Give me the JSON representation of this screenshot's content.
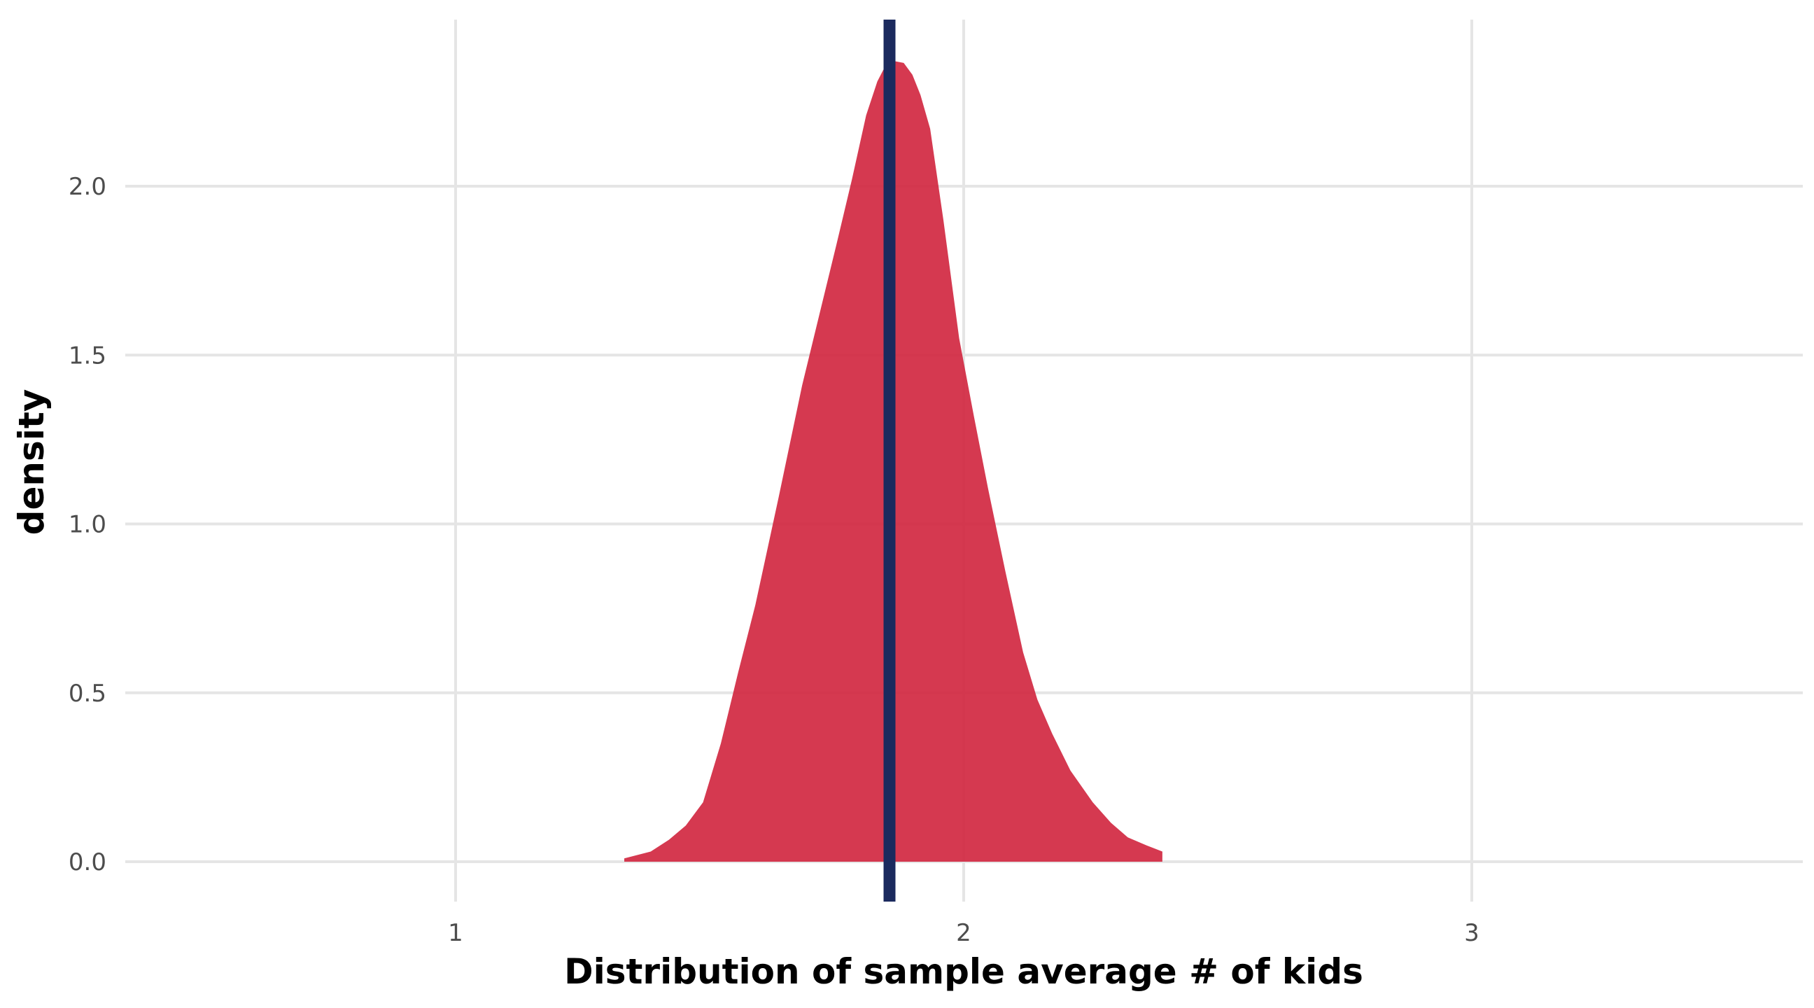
{
  "chart_data": {
    "type": "area",
    "title": "",
    "xlabel": "Distribution of sample average # of kids",
    "ylabel": "density",
    "xlim": [
      0.35,
      3.65
    ],
    "ylim": [
      -0.12,
      2.5
    ],
    "grid": true,
    "x_ticks": [
      {
        "value": 1,
        "label": "1"
      },
      {
        "value": 2,
        "label": "2"
      },
      {
        "value": 3,
        "label": "3"
      }
    ],
    "y_ticks": [
      {
        "value": 0,
        "label": "0.0"
      },
      {
        "value": 0.5,
        "label": "0.5"
      },
      {
        "value": 1,
        "label": "1.0"
      },
      {
        "value": 1.5,
        "label": "1.5"
      },
      {
        "value": 2,
        "label": "2.0"
      }
    ],
    "series": [
      {
        "name": "density",
        "color": "#d0233d",
        "opacity": 0.9,
        "x": [
          1.332,
          1.384,
          1.42,
          1.453,
          1.487,
          1.522,
          1.556,
          1.59,
          1.636,
          1.682,
          1.716,
          1.75,
          1.78,
          1.808,
          1.83,
          1.842,
          1.865,
          1.882,
          1.899,
          1.915,
          1.934,
          1.96,
          1.991,
          2.02,
          2.048,
          2.082,
          2.117,
          2.145,
          2.174,
          2.21,
          2.254,
          2.29,
          2.323,
          2.36,
          2.391
        ],
        "y": [
          0.01,
          0.03,
          0.065,
          0.107,
          0.176,
          0.35,
          0.56,
          0.76,
          1.08,
          1.41,
          1.62,
          1.83,
          2.02,
          2.21,
          2.31,
          2.345,
          2.37,
          2.365,
          2.33,
          2.27,
          2.17,
          1.9,
          1.55,
          1.32,
          1.105,
          0.86,
          0.62,
          0.48,
          0.38,
          0.27,
          0.176,
          0.115,
          0.072,
          0.048,
          0.03
        ]
      }
    ],
    "vline": {
      "x": 1.854,
      "color": "#1b2a5e"
    }
  }
}
